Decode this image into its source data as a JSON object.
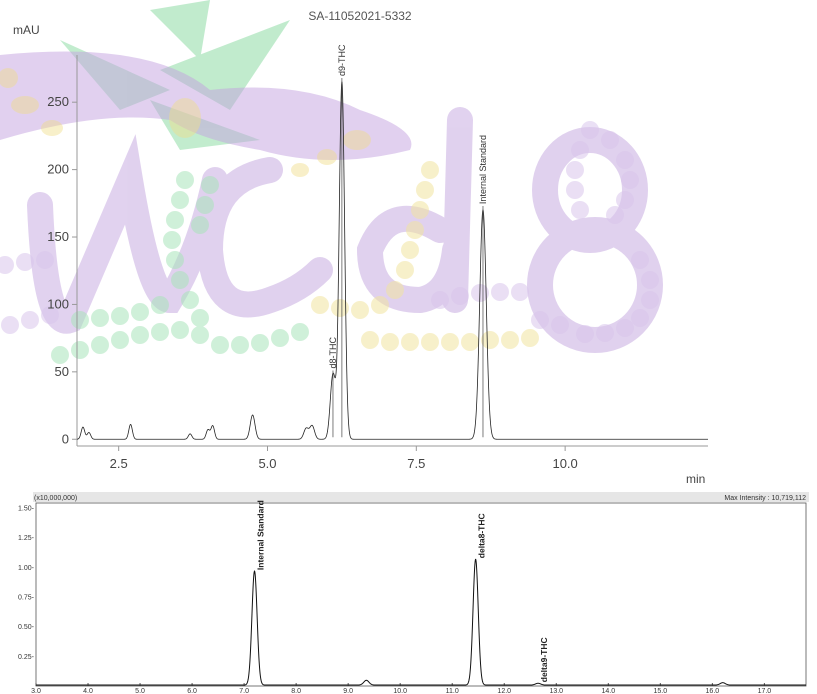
{
  "chart_data": [
    {
      "type": "line",
      "title": "SA-11052021-5332",
      "ylabel": "mAU",
      "xlabel": "min",
      "xlim": [
        1.8,
        12.4
      ],
      "ylim": [
        -5,
        285
      ],
      "x_ticks": [
        2.5,
        5.0,
        7.5,
        10.0
      ],
      "x_tick_labels": [
        "2.5",
        "5.0",
        "7.5",
        "10.0"
      ],
      "y_ticks": [
        0,
        50,
        100,
        150,
        200,
        250
      ],
      "y_tick_labels": [
        "0",
        "50",
        "100",
        "150",
        "200",
        "250"
      ],
      "series": [
        {
          "peaks": [
            {
              "rt": 1.9,
              "height": 9,
              "width": 0.03
            },
            {
              "rt": 2.0,
              "height": 5,
              "width": 0.03
            },
            {
              "rt": 2.7,
              "height": 11,
              "width": 0.03
            },
            {
              "rt": 3.7,
              "height": 4,
              "width": 0.03
            },
            {
              "rt": 4.0,
              "height": 7,
              "width": 0.03
            },
            {
              "rt": 4.08,
              "height": 10,
              "width": 0.03
            },
            {
              "rt": 4.75,
              "height": 18,
              "width": 0.04
            },
            {
              "rt": 5.65,
              "height": 8,
              "width": 0.04
            },
            {
              "rt": 5.75,
              "height": 10,
              "width": 0.04
            },
            {
              "rt": 6.1,
              "height": 48,
              "width": 0.045
            },
            {
              "rt": 6.25,
              "height": 265,
              "width": 0.045
            },
            {
              "rt": 8.62,
              "height": 170,
              "width": 0.055
            }
          ]
        }
      ],
      "annotations": [
        {
          "x": 6.1,
          "y": 48,
          "text": "d8-THC"
        },
        {
          "x": 6.25,
          "y": 265,
          "text": "d9-THC"
        },
        {
          "x": 8.62,
          "y": 170,
          "text": "Internal Standard"
        }
      ]
    },
    {
      "type": "line",
      "scale_label": "(x10,000,000)",
      "max_intensity_label": "Max Intensity : 10,719,112",
      "xlim": [
        3.0,
        17.8
      ],
      "ylim": [
        0,
        1.5
      ],
      "x_ticks": [
        3.0,
        4.0,
        5.0,
        6.0,
        7.0,
        8.0,
        9.0,
        10.0,
        11.0,
        12.0,
        13.0,
        14.0,
        15.0,
        16.0,
        17.0
      ],
      "x_tick_labels": [
        "3.0",
        "4.0",
        "5.0",
        "6.0",
        "7.0",
        "8.0",
        "9.0",
        "10.0",
        "11.0",
        "12.0",
        "13.0",
        "14.0",
        "15.0",
        "16.0",
        "17.0"
      ],
      "y_ticks": [
        0.25,
        0.5,
        0.75,
        1.0,
        1.25,
        1.5
      ],
      "y_tick_labels": [
        "0.25-",
        "0.50-",
        "0.75-",
        "1.00-",
        "1.25-",
        "1.50-"
      ],
      "series": [
        {
          "peaks": [
            {
              "rt": 7.2,
              "height": 0.96,
              "width": 0.05
            },
            {
              "rt": 9.35,
              "height": 0.04,
              "width": 0.05
            },
            {
              "rt": 11.45,
              "height": 1.06,
              "width": 0.05
            },
            {
              "rt": 12.65,
              "height": 0.015,
              "width": 0.05
            },
            {
              "rt": 16.2,
              "height": 0.02,
              "width": 0.05
            }
          ]
        }
      ],
      "annotations": [
        {
          "x": 7.2,
          "y": 0.96,
          "text": "Internal Standard"
        },
        {
          "x": 11.45,
          "y": 1.06,
          "text": "delta8-THC"
        },
        {
          "x": 12.65,
          "y": 0.015,
          "text": "delta9-THC"
        }
      ]
    }
  ],
  "watermark": {
    "text": "nc d8",
    "colors": {
      "mask": "#c9a8e0",
      "leaf": "#7fd69a",
      "bead_purple": "#d7c3ea",
      "bead_green": "#a8e3b8",
      "bead_yellow": "#f1e39a"
    }
  }
}
